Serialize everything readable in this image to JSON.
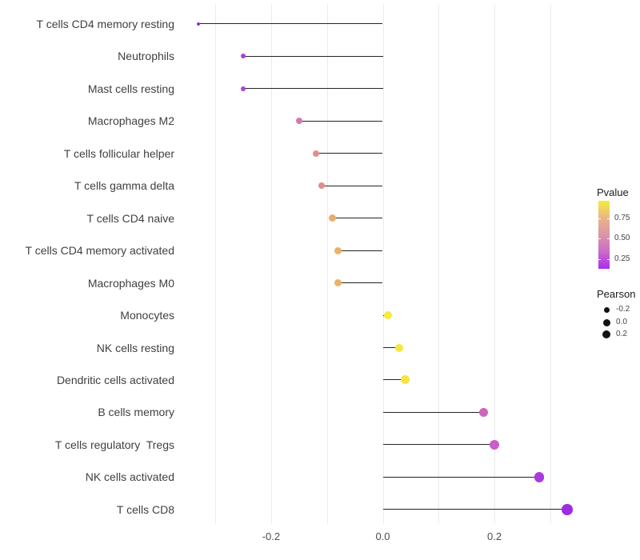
{
  "chart_data": {
    "type": "scatter",
    "subtype": "lollipop",
    "title": "",
    "xlabel": "",
    "ylabel": "",
    "xlim": [
      -0.37,
      0.36
    ],
    "grid": "vertical-only",
    "gridlines_x": [
      -0.3,
      -0.2,
      -0.1,
      0.0,
      0.1,
      0.2,
      0.3
    ],
    "x_ticks": [
      {
        "label": "-0.2",
        "value": -0.2
      },
      {
        "label": "0.0",
        "value": 0.0
      },
      {
        "label": "0.2",
        "value": 0.2
      }
    ],
    "rows": [
      {
        "label": "T cells CD4 memory resting",
        "pearson": -0.33,
        "pvalue": 0.08,
        "color": "#9A2BDF",
        "diameter": 4
      },
      {
        "label": "Neutrophils",
        "pearson": -0.25,
        "pvalue": 0.18,
        "color": "#AB40D4",
        "diameter": 6
      },
      {
        "label": "Mast cells resting",
        "pearson": -0.25,
        "pvalue": 0.18,
        "color": "#AD43D2",
        "diameter": 6
      },
      {
        "label": "Macrophages M2",
        "pearson": -0.15,
        "pvalue": 0.42,
        "color": "#D678B2",
        "diameter": 8
      },
      {
        "label": "T cells follicular helper",
        "pearson": -0.12,
        "pvalue": 0.52,
        "color": "#E08E90",
        "diameter": 8
      },
      {
        "label": "T cells gamma delta",
        "pearson": -0.11,
        "pvalue": 0.52,
        "color": "#E08E8C",
        "diameter": 8
      },
      {
        "label": "T cells CD4 naive",
        "pearson": -0.09,
        "pvalue": 0.63,
        "color": "#EBAC6C",
        "diameter": 9
      },
      {
        "label": "T cells CD4 memory activated",
        "pearson": -0.08,
        "pvalue": 0.65,
        "color": "#EDB066",
        "diameter": 9
      },
      {
        "label": "Macrophages M0",
        "pearson": -0.08,
        "pvalue": 0.65,
        "color": "#EDB066",
        "diameter": 9
      },
      {
        "label": "Monocytes",
        "pearson": 0.01,
        "pvalue": 0.92,
        "color": "#F9EA3C",
        "diameter": 10
      },
      {
        "label": "NK cells resting",
        "pearson": 0.03,
        "pvalue": 0.9,
        "color": "#F8E63E",
        "diameter": 10
      },
      {
        "label": "Dendritic cells activated",
        "pearson": 0.04,
        "pvalue": 0.88,
        "color": "#F7E340",
        "diameter": 11
      },
      {
        "label": "B cells memory",
        "pearson": 0.18,
        "pvalue": 0.4,
        "color": "#CB64BB",
        "diameter": 11
      },
      {
        "label": "T cells regulatory  Tregs",
        "pearson": 0.2,
        "pvalue": 0.35,
        "color": "#C95DC9",
        "diameter": 12
      },
      {
        "label": "NK cells activated",
        "pearson": 0.28,
        "pvalue": 0.15,
        "color": "#A93CDE",
        "diameter": 12.5
      },
      {
        "label": "T cells CD8",
        "pearson": 0.33,
        "pvalue": 0.1,
        "color": "#9D2CE0",
        "diameter": 13.5
      }
    ]
  },
  "legend": {
    "pvalue_title": "Pvalue",
    "pvalue_ticks": [
      {
        "label": "0.75",
        "frac_from_top": 0.26
      },
      {
        "label": "0.50",
        "frac_from_top": 0.55
      },
      {
        "label": "0.25",
        "frac_from_top": 0.86
      }
    ],
    "colorbar_colors_top_to_bottom": [
      "#F8EB3B",
      "#EAB585",
      "#DC95A8",
      "#C96BC8",
      "#AC2CEF"
    ],
    "pearson_title": "Pearson",
    "size_items": [
      {
        "label": "-0.2",
        "diameter": 7
      },
      {
        "label": "0.0",
        "diameter": 9
      },
      {
        "label": "0.2",
        "diameter": 10.5
      }
    ]
  }
}
